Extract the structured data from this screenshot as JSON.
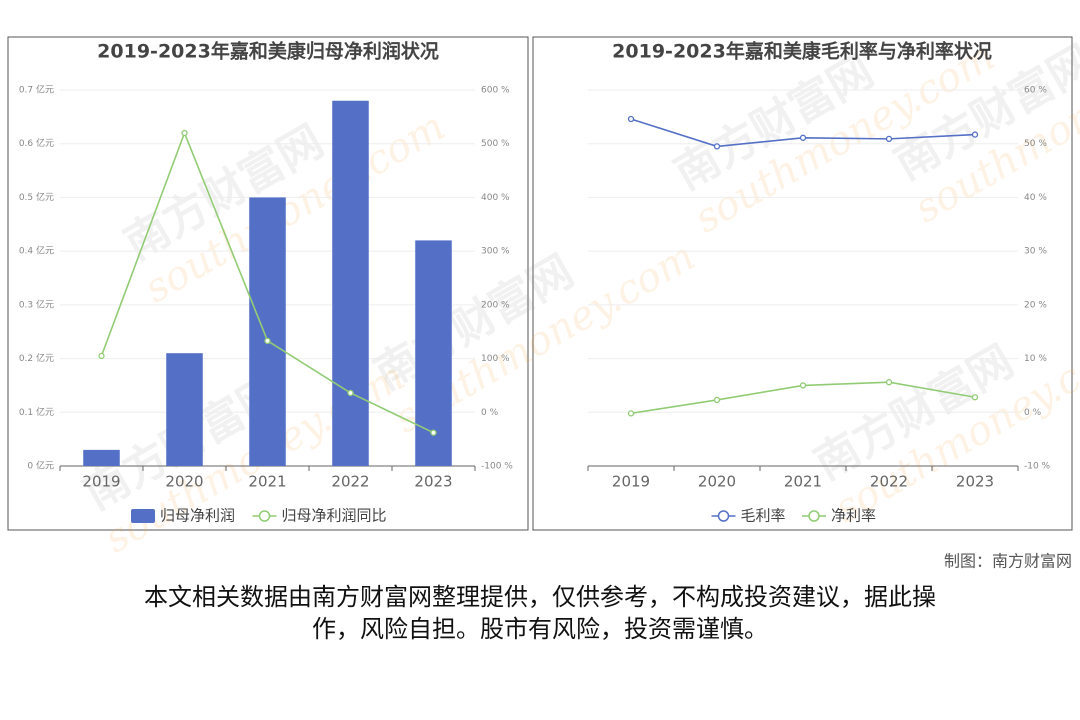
{
  "chart_data": [
    {
      "type": "bar",
      "title": "2019-2023年嘉和美康归母净利润状况",
      "categories": [
        "2019",
        "2020",
        "2021",
        "2022",
        "2023"
      ],
      "series": [
        {
          "name": "归母净利润",
          "type": "bar",
          "color": "#5470c6",
          "values": [
            0.03,
            0.21,
            0.5,
            0.68,
            0.42
          ]
        },
        {
          "name": "归母净利润同比",
          "type": "line",
          "axis": "y2",
          "color": "#91cc75",
          "values": [
            105,
            520,
            133,
            36,
            -38
          ]
        }
      ],
      "ylim": [
        0,
        0.7
      ],
      "yticks": [
        {
          "value": 0,
          "label": "0 亿元"
        },
        {
          "value": 0.1,
          "label": "0.1 亿元"
        },
        {
          "value": 0.2,
          "label": "0.2 亿元"
        },
        {
          "value": 0.3,
          "label": "0.3 亿元"
        },
        {
          "value": 0.4,
          "label": "0.4 亿元"
        },
        {
          "value": 0.5,
          "label": "0.5 亿元"
        },
        {
          "value": 0.6,
          "label": "0.6 亿元"
        },
        {
          "value": 0.7,
          "label": "0.7 亿元"
        }
      ],
      "y2lim": [
        -100,
        600
      ],
      "y2ticks": [
        {
          "value": -100,
          "label": "-100 %"
        },
        {
          "value": 0,
          "label": "0 %"
        },
        {
          "value": 100,
          "label": "100 %"
        },
        {
          "value": 200,
          "label": "200 %"
        },
        {
          "value": 300,
          "label": "300 %"
        },
        {
          "value": 400,
          "label": "400 %"
        },
        {
          "value": 500,
          "label": "500 %"
        },
        {
          "value": 600,
          "label": "600 %"
        }
      ],
      "grid": true
    },
    {
      "type": "line",
      "title": "2019-2023年嘉和美康毛利率与净利率状况",
      "categories": [
        "2019",
        "2020",
        "2021",
        "2022",
        "2023"
      ],
      "series": [
        {
          "name": "毛利率",
          "type": "line",
          "color": "#5470c6",
          "values": [
            54.6,
            49.5,
            51.1,
            50.9,
            51.7
          ]
        },
        {
          "name": "净利率",
          "type": "line",
          "color": "#91cc75",
          "values": [
            -0.2,
            2.3,
            5.0,
            5.6,
            2.8
          ]
        }
      ],
      "ylim": [
        -10,
        60
      ],
      "yticks": [
        {
          "value": -10,
          "label": "-10 %"
        },
        {
          "value": 0,
          "label": "0 %"
        },
        {
          "value": 10,
          "label": "10 %"
        },
        {
          "value": 20,
          "label": "20 %"
        },
        {
          "value": 30,
          "label": "30 %"
        },
        {
          "value": 40,
          "label": "40 %"
        },
        {
          "value": 50,
          "label": "50 %"
        },
        {
          "value": 60,
          "label": "60 %"
        }
      ],
      "grid": true
    }
  ],
  "watermark": [
    "南方财富网",
    "southmoney.com"
  ],
  "source": "制图：南方财富网",
  "disclaimer": [
    "本文相关数据由南方财富网整理提供，仅供参考，不构成投资建议，据此操",
    "作，风险自担。股市有风险，投资需谨慎。"
  ]
}
